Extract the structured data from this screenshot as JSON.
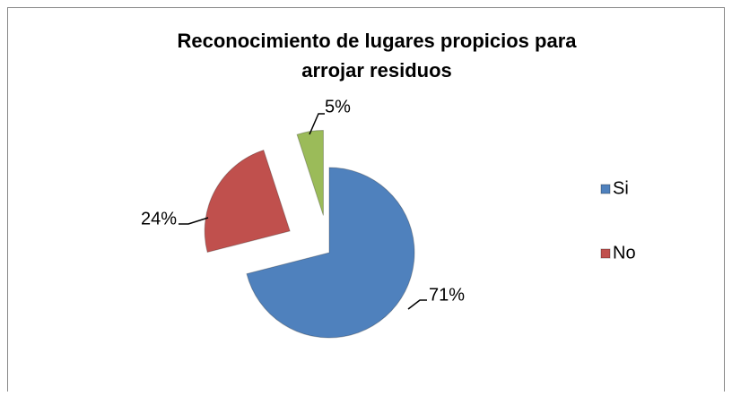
{
  "chart_data": {
    "type": "pie",
    "title": "Reconocimiento de lugares propicios para arrojar residuos",
    "categories": [
      "Si",
      "No",
      null
    ],
    "values": [
      71,
      24,
      5
    ],
    "value_labels": [
      "71%",
      "24%",
      "5%"
    ],
    "colors": [
      "#4f81bd",
      "#c0504d",
      "#9bbb59"
    ],
    "legend": "right"
  }
}
